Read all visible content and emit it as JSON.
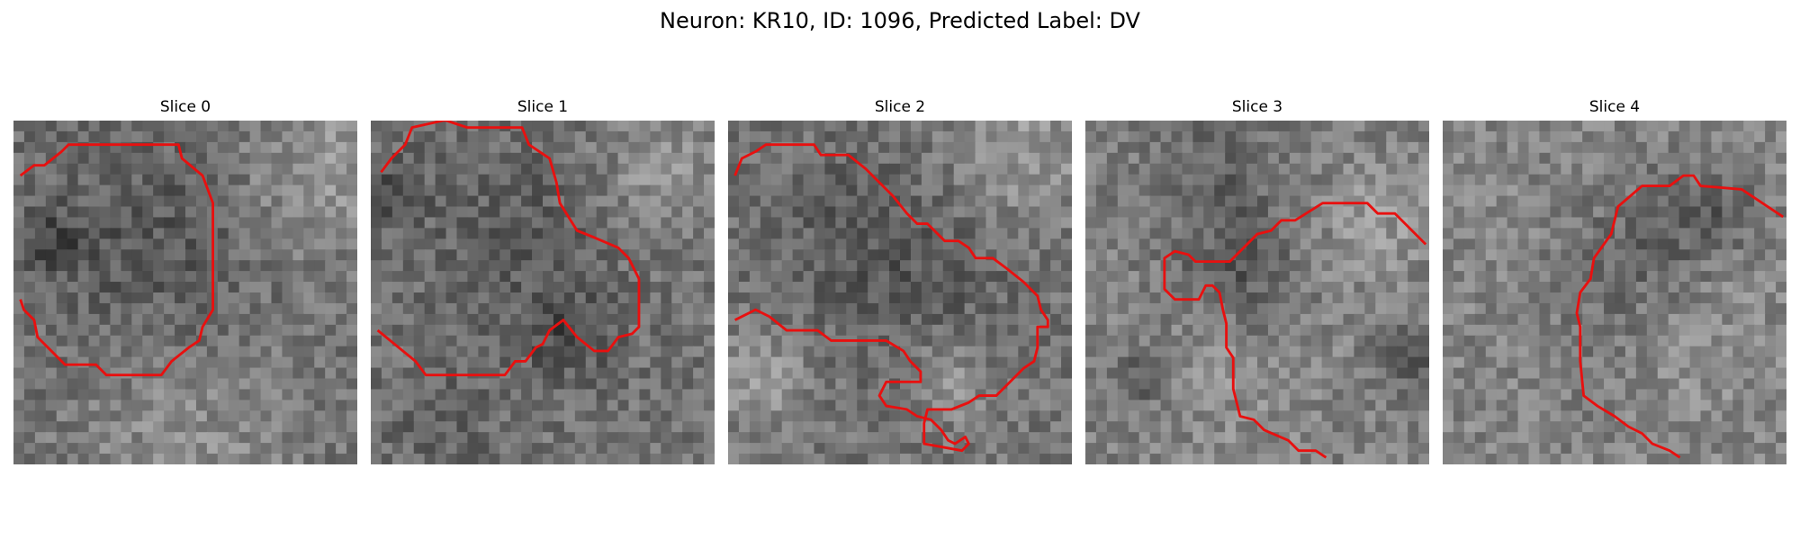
{
  "figure": {
    "title": "Neuron: KR10, ID: 1096, Predicted Label: DV"
  },
  "panels": [
    {
      "title": "Slice 0",
      "seed": 11,
      "base": 112,
      "blobs": [
        [
          0.4,
          0.4,
          0.33,
          -28
        ],
        [
          0.12,
          0.35,
          0.08,
          -40
        ],
        [
          0.9,
          0.15,
          0.25,
          40
        ],
        [
          0.5,
          0.9,
          0.35,
          30
        ]
      ],
      "contour": [
        [
          0.02,
          0.16
        ],
        [
          0.06,
          0.13
        ],
        [
          0.09,
          0.13
        ],
        [
          0.14,
          0.09
        ],
        [
          0.16,
          0.07
        ],
        [
          0.48,
          0.07
        ],
        [
          0.49,
          0.11
        ],
        [
          0.55,
          0.16
        ],
        [
          0.58,
          0.24
        ],
        [
          0.58,
          0.55
        ],
        [
          0.55,
          0.6
        ],
        [
          0.54,
          0.64
        ],
        [
          0.51,
          0.66
        ],
        [
          0.46,
          0.7
        ],
        [
          0.43,
          0.74
        ],
        [
          0.27,
          0.74
        ],
        [
          0.24,
          0.71
        ],
        [
          0.15,
          0.71
        ],
        [
          0.11,
          0.67
        ],
        [
          0.07,
          0.63
        ],
        [
          0.06,
          0.58
        ],
        [
          0.03,
          0.55
        ],
        [
          0.02,
          0.52
        ]
      ]
    },
    {
      "title": "Slice 1",
      "seed": 23,
      "base": 115,
      "blobs": [
        [
          0.45,
          0.35,
          0.32,
          -22
        ],
        [
          0.06,
          0.2,
          0.1,
          -35
        ],
        [
          0.57,
          0.63,
          0.12,
          -35
        ],
        [
          0.85,
          0.15,
          0.2,
          35
        ],
        [
          0.2,
          0.9,
          0.15,
          -20
        ]
      ],
      "contour": [
        [
          0.03,
          0.15
        ],
        [
          0.06,
          0.11
        ],
        [
          0.1,
          0.07
        ],
        [
          0.12,
          0.02
        ],
        [
          0.21,
          0.0
        ],
        [
          0.22,
          0.0
        ],
        [
          0.28,
          0.02
        ],
        [
          0.44,
          0.02
        ],
        [
          0.46,
          0.07
        ],
        [
          0.52,
          0.11
        ],
        [
          0.54,
          0.18
        ],
        [
          0.55,
          0.24
        ],
        [
          0.6,
          0.32
        ],
        [
          0.65,
          0.34
        ],
        [
          0.72,
          0.37
        ],
        [
          0.75,
          0.4
        ],
        [
          0.78,
          0.46
        ],
        [
          0.78,
          0.6
        ],
        [
          0.76,
          0.62
        ],
        [
          0.72,
          0.63
        ],
        [
          0.69,
          0.67
        ],
        [
          0.65,
          0.67
        ],
        [
          0.6,
          0.63
        ],
        [
          0.56,
          0.58
        ],
        [
          0.52,
          0.61
        ],
        [
          0.5,
          0.65
        ],
        [
          0.48,
          0.66
        ],
        [
          0.45,
          0.7
        ],
        [
          0.42,
          0.7
        ],
        [
          0.39,
          0.74
        ],
        [
          0.18,
          0.74
        ],
        [
          0.16,
          0.74
        ],
        [
          0.13,
          0.7
        ],
        [
          0.02,
          0.61
        ]
      ]
    },
    {
      "title": "Slice 2",
      "seed": 37,
      "base": 118,
      "blobs": [
        [
          0.55,
          0.45,
          0.3,
          -25
        ],
        [
          0.3,
          0.3,
          0.25,
          -15
        ],
        [
          0.1,
          0.75,
          0.12,
          40
        ],
        [
          0.65,
          0.75,
          0.12,
          35
        ],
        [
          0.85,
          0.1,
          0.2,
          35
        ]
      ],
      "contour": [
        [
          0.02,
          0.16
        ],
        [
          0.04,
          0.11
        ],
        [
          0.08,
          0.09
        ],
        [
          0.11,
          0.07
        ],
        [
          0.25,
          0.07
        ],
        [
          0.27,
          0.1
        ],
        [
          0.35,
          0.1
        ],
        [
          0.4,
          0.14
        ],
        [
          0.44,
          0.18
        ],
        [
          0.48,
          0.22
        ],
        [
          0.52,
          0.27
        ],
        [
          0.55,
          0.3
        ],
        [
          0.58,
          0.3
        ],
        [
          0.63,
          0.35
        ],
        [
          0.67,
          0.35
        ],
        [
          0.7,
          0.37
        ],
        [
          0.72,
          0.4
        ],
        [
          0.77,
          0.4
        ],
        [
          0.81,
          0.43
        ],
        [
          0.86,
          0.47
        ],
        [
          0.9,
          0.51
        ],
        [
          0.91,
          0.55
        ],
        [
          0.93,
          0.58
        ],
        [
          0.93,
          0.6
        ],
        [
          0.9,
          0.6
        ],
        [
          0.9,
          0.66
        ],
        [
          0.89,
          0.7
        ],
        [
          0.86,
          0.72
        ],
        [
          0.83,
          0.75
        ],
        [
          0.8,
          0.78
        ],
        [
          0.78,
          0.8
        ],
        [
          0.73,
          0.8
        ],
        [
          0.7,
          0.82
        ],
        [
          0.65,
          0.84
        ],
        [
          0.58,
          0.84
        ],
        [
          0.57,
          0.88
        ],
        [
          0.57,
          0.94
        ],
        [
          0.68,
          0.96
        ],
        [
          0.7,
          0.94
        ],
        [
          0.69,
          0.92
        ],
        [
          0.66,
          0.94
        ],
        [
          0.64,
          0.93
        ],
        [
          0.62,
          0.9
        ],
        [
          0.59,
          0.87
        ],
        [
          0.55,
          0.86
        ],
        [
          0.52,
          0.84
        ],
        [
          0.46,
          0.83
        ],
        [
          0.44,
          0.8
        ],
        [
          0.46,
          0.76
        ],
        [
          0.56,
          0.76
        ],
        [
          0.56,
          0.73
        ],
        [
          0.53,
          0.7
        ],
        [
          0.51,
          0.67
        ],
        [
          0.46,
          0.64
        ],
        [
          0.3,
          0.64
        ],
        [
          0.26,
          0.61
        ],
        [
          0.17,
          0.61
        ],
        [
          0.12,
          0.57
        ],
        [
          0.08,
          0.55
        ],
        [
          0.02,
          0.58
        ]
      ]
    },
    {
      "title": "Slice 3",
      "seed": 49,
      "base": 125,
      "blobs": [
        [
          0.45,
          0.45,
          0.18,
          -45
        ],
        [
          0.45,
          0.7,
          0.3,
          20
        ],
        [
          0.15,
          0.75,
          0.1,
          -35
        ],
        [
          0.4,
          0.15,
          0.15,
          -30
        ],
        [
          0.85,
          0.3,
          0.18,
          25
        ],
        [
          0.95,
          0.7,
          0.12,
          -30
        ]
      ],
      "contour": [
        [
          0.99,
          0.36
        ],
        [
          0.94,
          0.31
        ],
        [
          0.9,
          0.27
        ],
        [
          0.85,
          0.27
        ],
        [
          0.82,
          0.24
        ],
        [
          0.69,
          0.24
        ],
        [
          0.61,
          0.29
        ],
        [
          0.57,
          0.29
        ],
        [
          0.54,
          0.32
        ],
        [
          0.5,
          0.33
        ],
        [
          0.46,
          0.37
        ],
        [
          0.42,
          0.41
        ],
        [
          0.32,
          0.41
        ],
        [
          0.3,
          0.39
        ],
        [
          0.26,
          0.38
        ],
        [
          0.23,
          0.4
        ],
        [
          0.23,
          0.49
        ],
        [
          0.26,
          0.52
        ],
        [
          0.33,
          0.52
        ],
        [
          0.35,
          0.48
        ],
        [
          0.37,
          0.48
        ],
        [
          0.39,
          0.5
        ],
        [
          0.4,
          0.55
        ],
        [
          0.41,
          0.59
        ],
        [
          0.41,
          0.66
        ],
        [
          0.43,
          0.69
        ],
        [
          0.43,
          0.78
        ],
        [
          0.45,
          0.86
        ],
        [
          0.49,
          0.87
        ],
        [
          0.52,
          0.9
        ],
        [
          0.59,
          0.93
        ],
        [
          0.62,
          0.96
        ],
        [
          0.67,
          0.96
        ],
        [
          0.7,
          0.98
        ]
      ]
    },
    {
      "title": "Slice 4",
      "seed": 61,
      "base": 132,
      "blobs": [
        [
          0.6,
          0.35,
          0.2,
          -30
        ],
        [
          0.45,
          0.6,
          0.22,
          -12
        ],
        [
          0.75,
          0.65,
          0.2,
          15
        ],
        [
          0.8,
          0.25,
          0.12,
          -35
        ]
      ],
      "contour": [
        [
          0.99,
          0.28
        ],
        [
          0.87,
          0.2
        ],
        [
          0.75,
          0.19
        ],
        [
          0.73,
          0.16
        ],
        [
          0.7,
          0.16
        ],
        [
          0.66,
          0.19
        ],
        [
          0.58,
          0.19
        ],
        [
          0.51,
          0.25
        ],
        [
          0.49,
          0.33
        ],
        [
          0.44,
          0.4
        ],
        [
          0.43,
          0.46
        ],
        [
          0.4,
          0.5
        ],
        [
          0.39,
          0.56
        ],
        [
          0.4,
          0.6
        ],
        [
          0.4,
          0.7
        ],
        [
          0.41,
          0.8
        ],
        [
          0.45,
          0.83
        ],
        [
          0.5,
          0.86
        ],
        [
          0.54,
          0.89
        ],
        [
          0.58,
          0.91
        ],
        [
          0.61,
          0.94
        ],
        [
          0.66,
          0.96
        ],
        [
          0.69,
          0.98
        ]
      ]
    }
  ],
  "colors": {
    "contour": "#e8100f",
    "text": "#000000"
  }
}
